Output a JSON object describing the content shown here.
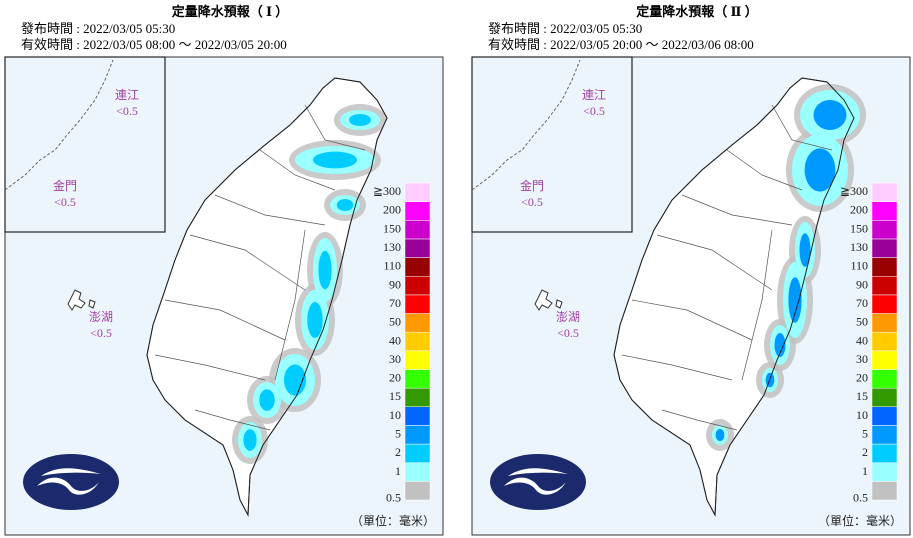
{
  "panels": [
    {
      "title": "定量降水預報（ Ⅰ ）",
      "issued": "發布時間 : 2022/03/05 05:30",
      "valid": "有效時間 : 2022/03/05 08:00 ～ 2022/03/05 20:00",
      "islands": [
        {
          "name": "連江",
          "value": "<0.5"
        },
        {
          "name": "金門",
          "value": "<0.5"
        },
        {
          "name": "澎湖",
          "value": "<0.5"
        }
      ],
      "unit": "（單位：毫米）"
    },
    {
      "title": "定量降水預報（ Ⅱ ）",
      "issued": "發布時間 : 2022/03/05 05:30",
      "valid": "有效時間 : 2022/03/05 20:00 ～ 2022/03/06 08:00",
      "islands": [
        {
          "name": "連江",
          "value": "<0.5"
        },
        {
          "name": "金門",
          "value": "<0.5"
        },
        {
          "name": "澎湖",
          "value": "<0.5"
        }
      ],
      "unit": "（單位：毫米）"
    }
  ],
  "legend": {
    "labels": [
      "0.5",
      "1",
      "2",
      "5",
      "10",
      "15",
      "20",
      "30",
      "40",
      "50",
      "70",
      "90",
      "110",
      "130",
      "150",
      "200",
      "≧300"
    ],
    "colors": [
      "#c1c1c1",
      "#99ffff",
      "#00ccff",
      "#0099ff",
      "#0166ff",
      "#329900",
      "#33ff00",
      "#ffff00",
      "#ffcc00",
      "#ff9900",
      "#ff0000",
      "#cc0000",
      "#990000",
      "#990099",
      "#cc00cc",
      "#ff00ff",
      "#ffccff"
    ]
  }
}
